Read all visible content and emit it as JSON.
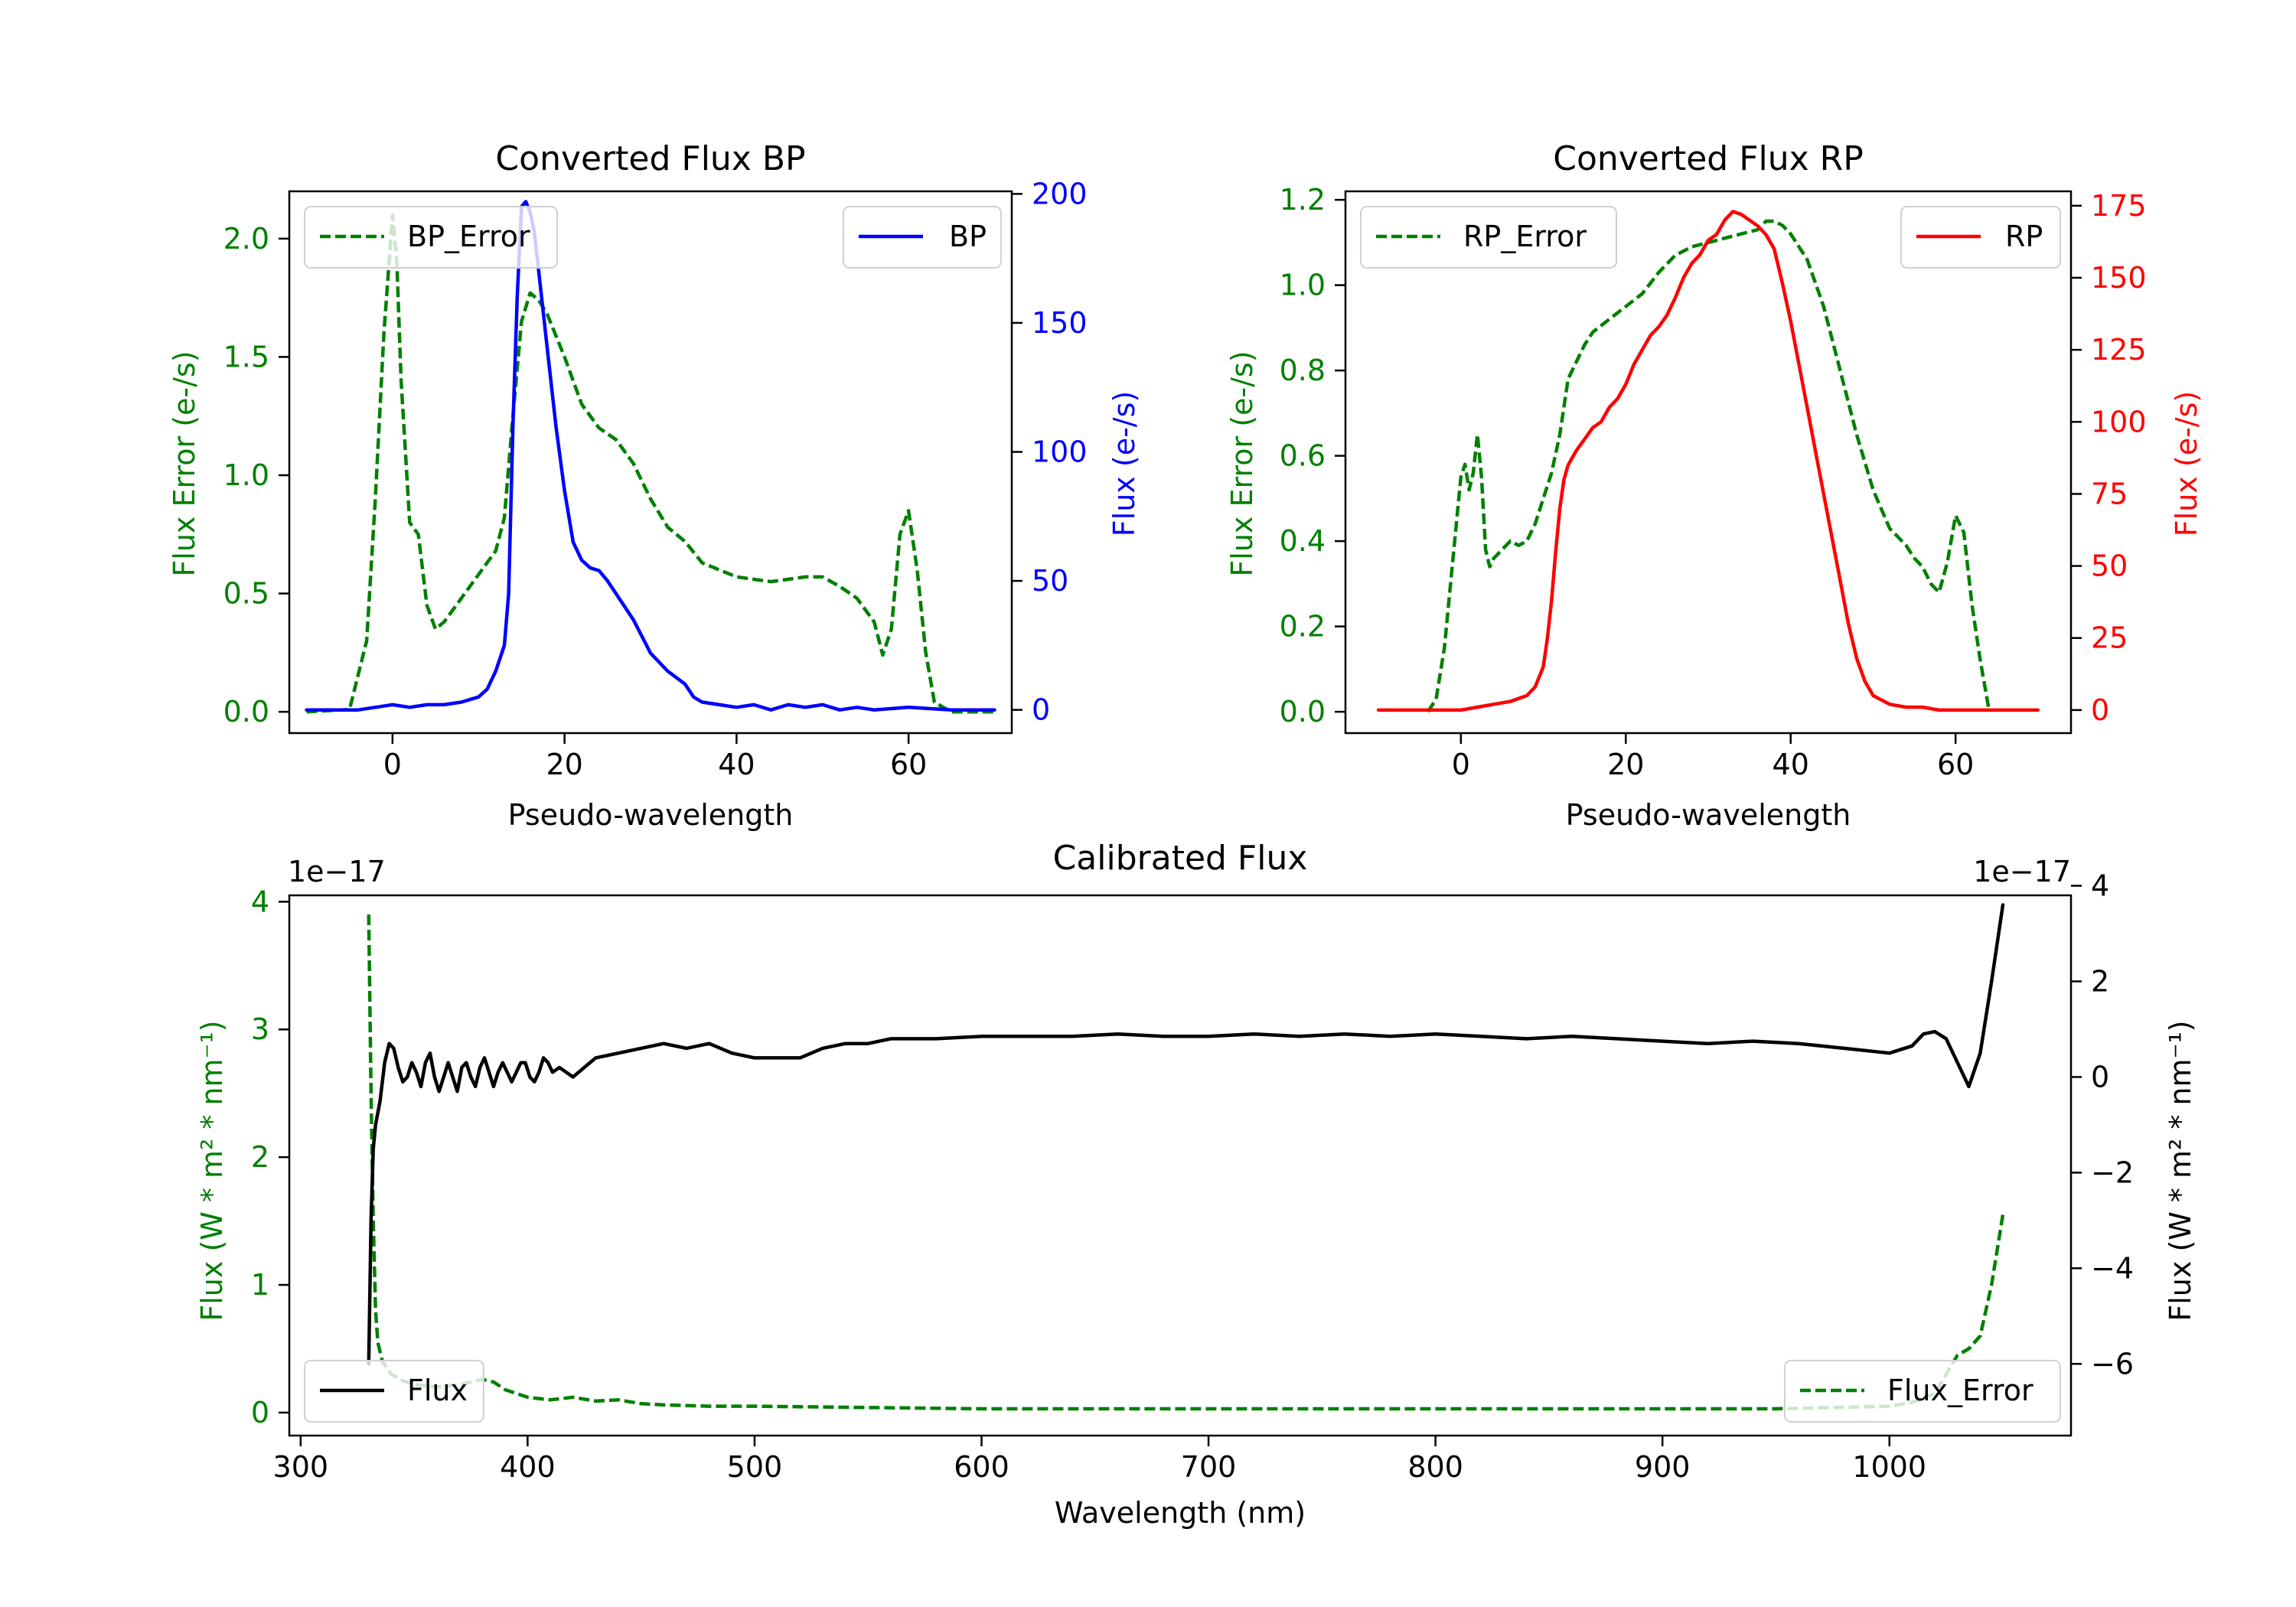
{
  "colors": {
    "bp": "#0000ff",
    "rp": "#ff0000",
    "error": "#008000",
    "flux": "#000000"
  },
  "chart_data": [
    {
      "id": "bp",
      "type": "line",
      "title": "Converted Flux BP",
      "xlabel": "Pseudo-wavelength",
      "ylabel_left": "Flux Error (e-/s)",
      "ylabel_right": "Flux (e-/s)",
      "xlim": [
        -12,
        72
      ],
      "ylim_left": [
        -0.09,
        2.2
      ],
      "ylim_right": [
        -9,
        201
      ],
      "xticks": [
        0,
        20,
        40,
        60
      ],
      "yticks_left": [
        0.0,
        0.5,
        1.0,
        1.5,
        2.0
      ],
      "yticks_left_labels": [
        "0.0",
        "0.5",
        "1.0",
        "1.5",
        "2.0"
      ],
      "yticks_right": [
        0,
        50,
        100,
        150,
        200
      ],
      "yticks_right_labels": [
        "0",
        "50",
        "100",
        "150",
        "200"
      ],
      "legend_left": {
        "label": "BP_Error",
        "placement": "upper left"
      },
      "legend_right": {
        "label": "BP",
        "placement": "upper right"
      },
      "series": [
        {
          "name": "BP_Error",
          "axis": "left",
          "style": "dashed",
          "color_key": "error",
          "x": [
            -10,
            -5,
            -3,
            -2,
            -1,
            0,
            0.5,
            1,
            2,
            3,
            4,
            5,
            6,
            8,
            10,
            12,
            13,
            14,
            15,
            16,
            17,
            18,
            20,
            22,
            24,
            26,
            28,
            30,
            32,
            34,
            36,
            38,
            40,
            42,
            44,
            46,
            48,
            50,
            52,
            54,
            56,
            57,
            58,
            59,
            60,
            61,
            62,
            63,
            65,
            70
          ],
          "y": [
            0.0,
            0.01,
            0.3,
            0.9,
            1.6,
            2.1,
            1.9,
            1.4,
            0.8,
            0.75,
            0.45,
            0.35,
            0.38,
            0.48,
            0.58,
            0.68,
            0.82,
            1.25,
            1.65,
            1.77,
            1.74,
            1.68,
            1.5,
            1.3,
            1.2,
            1.15,
            1.05,
            0.9,
            0.78,
            0.72,
            0.63,
            0.6,
            0.57,
            0.56,
            0.55,
            0.56,
            0.57,
            0.57,
            0.53,
            0.48,
            0.38,
            0.24,
            0.35,
            0.75,
            0.85,
            0.6,
            0.25,
            0.04,
            0.0,
            0.0
          ]
        },
        {
          "name": "BP",
          "axis": "right",
          "style": "solid",
          "color_key": "bp",
          "x": [
            -10,
            -6,
            -4,
            -2,
            0,
            2,
            4,
            6,
            8,
            10,
            11,
            12,
            13,
            13.5,
            14,
            14.5,
            15,
            15.5,
            16,
            16.5,
            17,
            18,
            19,
            20,
            21,
            22,
            23,
            24,
            25,
            26,
            28,
            30,
            32,
            34,
            35,
            36,
            38,
            40,
            42,
            44,
            46,
            48,
            50,
            52,
            54,
            56,
            60,
            65,
            70
          ],
          "y": [
            0,
            0,
            0,
            1,
            2,
            1,
            2,
            2,
            3,
            5,
            8,
            15,
            25,
            45,
            110,
            160,
            195,
            197,
            193,
            185,
            170,
            140,
            110,
            85,
            65,
            58,
            55,
            54,
            50,
            45,
            35,
            22,
            15,
            10,
            5,
            3,
            2,
            1,
            2,
            0,
            2,
            1,
            2,
            0,
            1,
            0,
            1,
            0,
            0
          ]
        }
      ]
    },
    {
      "id": "rp",
      "type": "line",
      "title": "Converted Flux RP",
      "xlabel": "Pseudo-wavelength",
      "ylabel_left": "Flux Error (e-/s)",
      "ylabel_right": "Flux (e-/s)",
      "xlim": [
        -14,
        74
      ],
      "ylim_left": [
        -0.05,
        1.22
      ],
      "ylim_right": [
        -8,
        180
      ],
      "xticks": [
        0,
        20,
        40,
        60
      ],
      "yticks_left": [
        0.0,
        0.2,
        0.4,
        0.6,
        0.8,
        1.0,
        1.2
      ],
      "yticks_left_labels": [
        "0.0",
        "0.2",
        "0.4",
        "0.6",
        "0.8",
        "1.0",
        "1.2"
      ],
      "yticks_right": [
        0,
        25,
        50,
        75,
        100,
        125,
        150,
        175
      ],
      "yticks_right_labels": [
        "0",
        "25",
        "50",
        "75",
        "100",
        "125",
        "150",
        "175"
      ],
      "legend_left": {
        "label": "RP_Error",
        "placement": "upper left"
      },
      "legend_right": {
        "label": "RP",
        "placement": "upper right"
      },
      "series": [
        {
          "name": "RP_Error",
          "axis": "left",
          "style": "dashed",
          "color_key": "error",
          "x": [
            -4,
            -3,
            -2,
            -1,
            0,
            0.5,
            1,
            1.5,
            2,
            2.5,
            3,
            3.5,
            4,
            5,
            6,
            7,
            8,
            9,
            10,
            11,
            12,
            13,
            14,
            15,
            16,
            18,
            20,
            22,
            24,
            26,
            28,
            30,
            32,
            34,
            36,
            37,
            38,
            39,
            40,
            42,
            44,
            46,
            48,
            50,
            52,
            54,
            55,
            56,
            57,
            58,
            59,
            60,
            61,
            62,
            63,
            64
          ],
          "y": [
            0.0,
            0.03,
            0.15,
            0.35,
            0.55,
            0.58,
            0.52,
            0.56,
            0.65,
            0.55,
            0.38,
            0.34,
            0.36,
            0.38,
            0.4,
            0.39,
            0.4,
            0.44,
            0.5,
            0.56,
            0.65,
            0.78,
            0.82,
            0.86,
            0.89,
            0.92,
            0.95,
            0.98,
            1.03,
            1.07,
            1.09,
            1.1,
            1.11,
            1.12,
            1.13,
            1.15,
            1.15,
            1.14,
            1.12,
            1.06,
            0.95,
            0.8,
            0.65,
            0.52,
            0.43,
            0.39,
            0.36,
            0.34,
            0.3,
            0.28,
            0.35,
            0.46,
            0.42,
            0.25,
            0.12,
            0.01
          ]
        },
        {
          "name": "RP",
          "axis": "right",
          "style": "solid",
          "color_key": "rp",
          "x": [
            -10,
            -5,
            0,
            2,
            4,
            6,
            8,
            9,
            10,
            10.5,
            11,
            11.5,
            12,
            12.5,
            13,
            14,
            15,
            16,
            17,
            18,
            19,
            20,
            21,
            22,
            23,
            24,
            25,
            26,
            27,
            28,
            29,
            30,
            31,
            32,
            33,
            34,
            35,
            36,
            37,
            38,
            39,
            40,
            41,
            42,
            43,
            44,
            45,
            46,
            47,
            48,
            49,
            50,
            52,
            54,
            56,
            58,
            60,
            62,
            65,
            70
          ],
          "y": [
            0,
            0,
            0,
            1,
            2,
            3,
            5,
            8,
            15,
            25,
            38,
            55,
            70,
            80,
            85,
            90,
            94,
            98,
            100,
            105,
            108,
            113,
            120,
            125,
            130,
            133,
            137,
            143,
            150,
            155,
            158,
            163,
            165,
            170,
            173,
            172,
            170,
            168,
            165,
            160,
            148,
            135,
            120,
            105,
            90,
            75,
            60,
            45,
            30,
            18,
            10,
            5,
            2,
            1,
            1,
            0,
            0,
            0,
            0,
            0
          ]
        }
      ]
    },
    {
      "id": "calibrated",
      "type": "line",
      "title": "Calibrated Flux",
      "xlabel": "Wavelength (nm)",
      "ylabel_left": "Flux (W * m² * nm⁻¹)",
      "ylabel_right": "Flux (W * m² * nm⁻¹)",
      "offset_left": "1e−17",
      "offset_right": "1e−17",
      "xlim": [
        295,
        1080
      ],
      "ylim_left": [
        -0.18,
        4.05
      ],
      "ylim_right": [
        -7.5,
        3.8
      ],
      "xticks": [
        300,
        400,
        500,
        600,
        700,
        800,
        900,
        1000
      ],
      "yticks_left": [
        0,
        1,
        2,
        3,
        4
      ],
      "yticks_left_labels": [
        "0",
        "1",
        "2",
        "3",
        "4"
      ],
      "yticks_right": [
        -6,
        -4,
        -2,
        0,
        2,
        4
      ],
      "yticks_right_labels": [
        "−6",
        "−4",
        "−2",
        "0",
        "2",
        "4"
      ],
      "legend_left": {
        "label": "Flux",
        "placement": "lower left"
      },
      "legend_right": {
        "label": "Flux_Error",
        "placement": "lower right"
      },
      "series": [
        {
          "name": "Flux_Error",
          "axis": "left",
          "style": "dashed",
          "color_key": "error",
          "x": [
            330,
            331,
            332,
            333,
            334,
            336,
            340,
            345,
            350,
            360,
            370,
            380,
            385,
            390,
            400,
            410,
            420,
            430,
            440,
            450,
            460,
            480,
            500,
            550,
            600,
            650,
            700,
            750,
            800,
            850,
            900,
            950,
            1000,
            1010,
            1020,
            1025,
            1030,
            1035,
            1040,
            1045,
            1050
          ],
          "y": [
            3.9,
            2.5,
            1.5,
            0.8,
            0.55,
            0.4,
            0.3,
            0.25,
            0.22,
            0.2,
            0.22,
            0.26,
            0.24,
            0.18,
            0.12,
            0.1,
            0.12,
            0.09,
            0.1,
            0.07,
            0.06,
            0.05,
            0.05,
            0.04,
            0.03,
            0.03,
            0.03,
            0.03,
            0.03,
            0.03,
            0.03,
            0.03,
            0.05,
            0.08,
            0.15,
            0.3,
            0.45,
            0.5,
            0.6,
            1.0,
            1.55
          ]
        },
        {
          "name": "Flux",
          "axis": "right",
          "style": "solid",
          "color_key": "flux",
          "x": [
            330,
            331,
            332,
            333,
            335,
            337,
            339,
            341,
            343,
            345,
            347,
            349,
            351,
            353,
            355,
            357,
            359,
            361,
            363,
            365,
            367,
            369,
            371,
            373,
            375,
            377,
            379,
            381,
            383,
            385,
            387,
            389,
            391,
            393,
            395,
            397,
            399,
            401,
            403,
            405,
            407,
            409,
            411,
            414,
            417,
            420,
            425,
            430,
            440,
            450,
            460,
            470,
            480,
            490,
            500,
            510,
            520,
            530,
            540,
            550,
            560,
            580,
            600,
            620,
            640,
            660,
            680,
            700,
            720,
            740,
            760,
            780,
            800,
            820,
            840,
            860,
            880,
            900,
            920,
            940,
            960,
            980,
            1000,
            1010,
            1015,
            1020,
            1025,
            1030,
            1035,
            1040,
            1045,
            1050
          ],
          "y": [
            -6.0,
            -3.0,
            -1.5,
            -1.0,
            -0.5,
            0.3,
            0.7,
            0.6,
            0.2,
            -0.1,
            0.0,
            0.3,
            0.1,
            -0.2,
            0.3,
            0.5,
            0.0,
            -0.3,
            0.0,
            0.3,
            0.0,
            -0.3,
            0.2,
            0.3,
            0.0,
            -0.2,
            0.2,
            0.4,
            0.1,
            -0.2,
            0.1,
            0.3,
            0.1,
            -0.1,
            0.1,
            0.3,
            0.3,
            0.0,
            -0.1,
            0.1,
            0.4,
            0.3,
            0.1,
            0.2,
            0.1,
            0.0,
            0.2,
            0.4,
            0.5,
            0.6,
            0.7,
            0.6,
            0.7,
            0.5,
            0.4,
            0.4,
            0.4,
            0.6,
            0.7,
            0.7,
            0.8,
            0.8,
            0.85,
            0.85,
            0.85,
            0.9,
            0.85,
            0.85,
            0.9,
            0.85,
            0.9,
            0.85,
            0.9,
            0.85,
            0.8,
            0.85,
            0.8,
            0.75,
            0.7,
            0.75,
            0.7,
            0.6,
            0.5,
            0.65,
            0.9,
            0.95,
            0.8,
            0.3,
            -0.2,
            0.5,
            2.0,
            3.6
          ]
        }
      ]
    }
  ]
}
